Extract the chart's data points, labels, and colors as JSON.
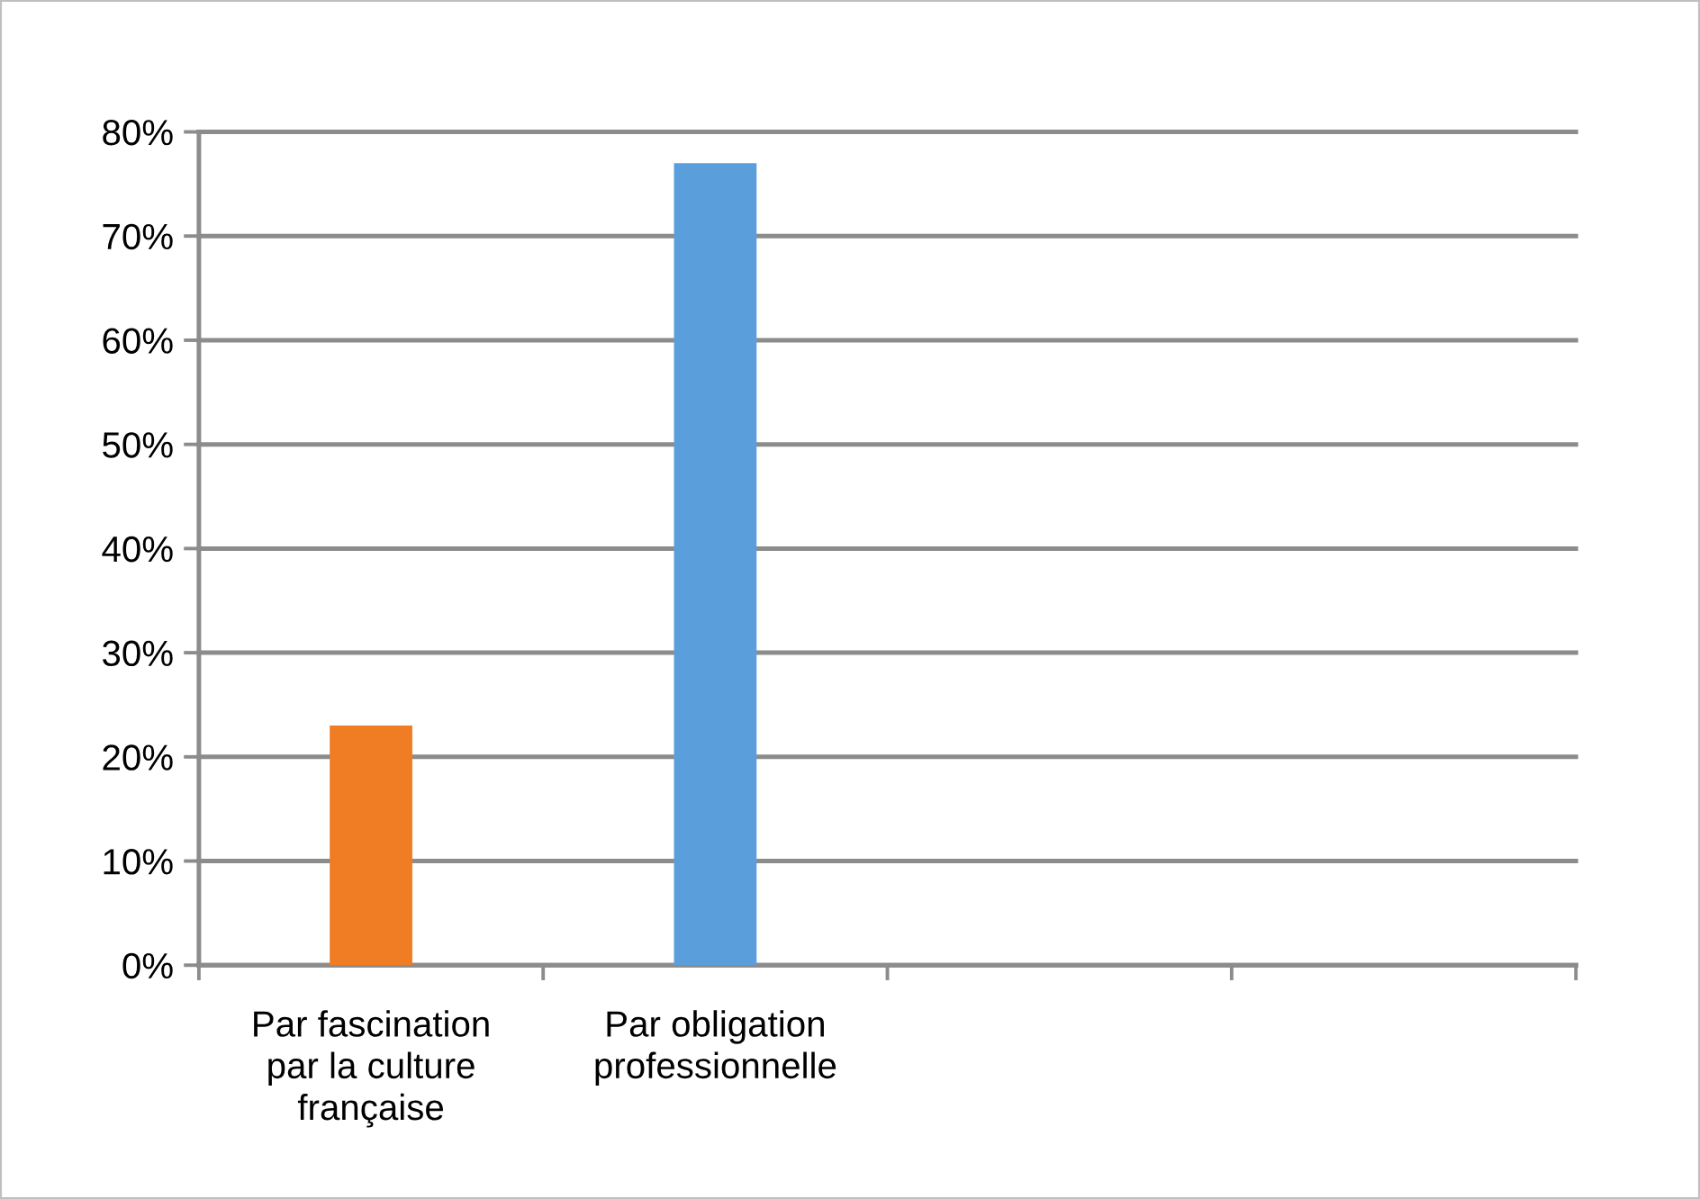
{
  "chart_data": {
    "type": "bar",
    "categories": [
      "Par fascination par la culture française",
      "Par obligation professionnelle",
      null,
      null
    ],
    "values": [
      23,
      77,
      null,
      null
    ],
    "colors": [
      "#f07d24",
      "#5a9fdc",
      null,
      null
    ],
    "ylim": [
      0,
      80
    ],
    "yticks": [
      {
        "value": 0,
        "label": "0%"
      },
      {
        "value": 10,
        "label": "10%"
      },
      {
        "value": 20,
        "label": "20%"
      },
      {
        "value": 30,
        "label": "30%"
      },
      {
        "value": 40,
        "label": "40%"
      },
      {
        "value": 50,
        "label": "50%"
      },
      {
        "value": 60,
        "label": "60%"
      },
      {
        "value": 70,
        "label": "70%"
      },
      {
        "value": 80,
        "label": "80%"
      }
    ],
    "grid": "y"
  }
}
